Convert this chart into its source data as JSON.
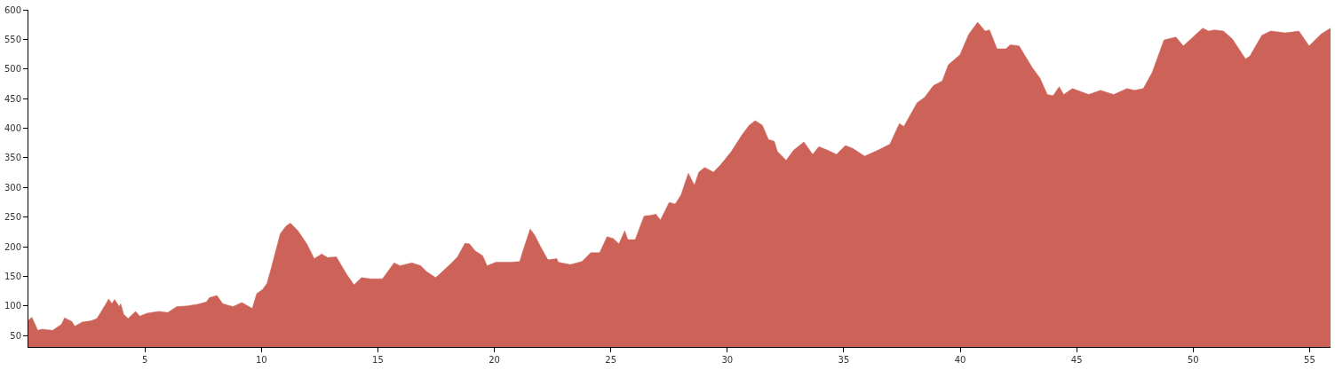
{
  "chart_data": {
    "type": "area",
    "x": [
      0,
      0.15,
      0.4,
      0.59,
      1.04,
      1.42,
      1.55,
      1.86,
      1.99,
      2.31,
      2.69,
      2.94,
      3.13,
      3.45,
      3.58,
      3.7,
      3.9,
      3.96,
      4.09,
      4.28,
      4.6,
      4.78,
      5.1,
      5.6,
      5.98,
      6.37,
      6.75,
      7.26,
      7.64,
      7.77,
      8.09,
      8.34,
      8.78,
      9.16,
      9.61,
      9.8,
      10.05,
      10.24,
      10.43,
      10.81,
      11.06,
      11.25,
      11.57,
      11.95,
      12.27,
      12.59,
      12.84,
      13.22,
      13.67,
      13.98,
      14.3,
      14.68,
      15.2,
      15.7,
      15.95,
      16.46,
      16.84,
      17.1,
      17.48,
      17.66,
      18.17,
      18.42,
      18.74,
      18.93,
      19.18,
      19.5,
      19.69,
      20.07,
      20.71,
      21.09,
      21.22,
      21.54,
      21.73,
      21.99,
      22.3,
      22.68,
      22.75,
      23.26,
      23.76,
      24.14,
      24.52,
      24.84,
      25.1,
      25.35,
      25.6,
      25.73,
      26.05,
      26.43,
      26.68,
      26.94,
      27.13,
      27.51,
      27.76,
      28.01,
      28.33,
      28.59,
      28.78,
      29.03,
      29.41,
      29.73,
      30.18,
      30.62,
      30.94,
      31.2,
      31.51,
      31.77,
      32.02,
      32.15,
      32.53,
      32.85,
      33.29,
      33.67,
      33.93,
      34.31,
      34.69,
      35.07,
      35.39,
      35.9,
      36.47,
      36.98,
      37.39,
      37.58,
      38.15,
      38.47,
      38.85,
      39.23,
      39.49,
      39.99,
      40.37,
      40.75,
      41.07,
      41.26,
      41.58,
      41.96,
      42.15,
      42.53,
      43.1,
      43.42,
      43.74,
      43.99,
      44.25,
      44.44,
      44.82,
      45.52,
      46.02,
      46.59,
      47.16,
      47.48,
      47.86,
      48.24,
      48.75,
      49.26,
      49.58,
      50.41,
      50.66,
      50.92,
      51.3,
      51.68,
      52.25,
      52.44,
      52.95,
      53.33,
      53.97,
      54.54,
      54.98,
      55.49,
      55.9
    ],
    "values": [
      76,
      81,
      59,
      61,
      59,
      69,
      80,
      74,
      66,
      73,
      75,
      79,
      91,
      112,
      104,
      111,
      99,
      104,
      86,
      79,
      91,
      83,
      88,
      91,
      89,
      99,
      100,
      103,
      107,
      114,
      118,
      104,
      99,
      106,
      96,
      121,
      128,
      138,
      165,
      222,
      235,
      240,
      227,
      205,
      180,
      188,
      182,
      183,
      153,
      136,
      148,
      146,
      146,
      173,
      168,
      173,
      168,
      158,
      148,
      154,
      173,
      183,
      206,
      205,
      193,
      185,
      168,
      174,
      174,
      175,
      192,
      230,
      220,
      200,
      178,
      180,
      174,
      170,
      175,
      190,
      190,
      217,
      214,
      205,
      227,
      212,
      212,
      252,
      253,
      255,
      245,
      275,
      272,
      287,
      324,
      304,
      326,
      334,
      326,
      339,
      361,
      388,
      405,
      413,
      405,
      381,
      378,
      361,
      346,
      363,
      377,
      356,
      369,
      363,
      356,
      371,
      366,
      353,
      363,
      373,
      408,
      403,
      443,
      452,
      472,
      480,
      507,
      524,
      559,
      579,
      564,
      566,
      534,
      534,
      541,
      539,
      502,
      485,
      457,
      455,
      470,
      457,
      467,
      457,
      464,
      457,
      467,
      464,
      467,
      494,
      549,
      554,
      539,
      569,
      564,
      566,
      564,
      551,
      517,
      522,
      557,
      564,
      561,
      564,
      539,
      559,
      569
    ],
    "color": "#cd6358",
    "xlim": [
      0,
      55.9
    ],
    "xticks": [
      5,
      10,
      15,
      20,
      25,
      30,
      35,
      40,
      45,
      50,
      55
    ],
    "ylim": [
      31,
      600
    ],
    "yticks": [
      50,
      100,
      150,
      200,
      250,
      300,
      350,
      400,
      450,
      500,
      550,
      600
    ]
  }
}
